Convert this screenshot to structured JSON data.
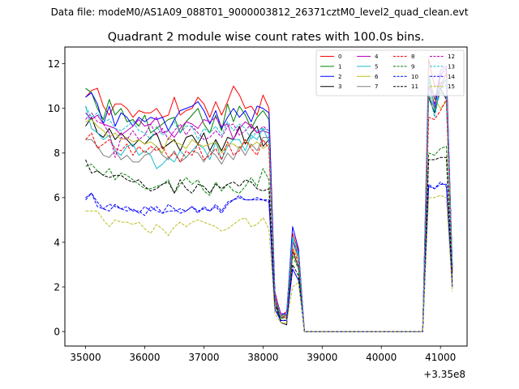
{
  "header": {
    "suptitle": "Data file: modeM0/AS1A09_088T01_9000003812_26371cztM0_level2_quad_clean.evt"
  },
  "chart_data": {
    "type": "line",
    "title": "Quadrant 2 module wise count rates with 100.0s bins.",
    "xlabel": "",
    "ylabel": "",
    "x_offset_label": "+3.35e8",
    "xlim": [
      34650,
      41450
    ],
    "ylim": [
      -0.65,
      12.75
    ],
    "xticks": [
      35000,
      36000,
      37000,
      38000,
      39000,
      40000,
      41000
    ],
    "xtick_labels": [
      "35000",
      "36000",
      "37000",
      "38000",
      "39000",
      "40000",
      "41000"
    ],
    "yticks": [
      0,
      2,
      4,
      6,
      8,
      10,
      12
    ],
    "ytick_labels": [
      "0",
      "2",
      "4",
      "6",
      "8",
      "10",
      "12"
    ],
    "legend_location": "top-right",
    "x": [
      35000,
      35100,
      35200,
      35300,
      35400,
      35500,
      35600,
      35700,
      35800,
      35900,
      36000,
      36100,
      36200,
      36300,
      36400,
      36500,
      36600,
      36700,
      36800,
      36900,
      37000,
      37100,
      37200,
      37300,
      37400,
      37500,
      37600,
      37700,
      37800,
      37900,
      38000,
      38100,
      38200,
      38300,
      38400,
      38500,
      38600,
      38700,
      38800,
      38900,
      39000,
      39100,
      39200,
      39300,
      39400,
      39500,
      39600,
      39700,
      39800,
      39900,
      40000,
      40100,
      40200,
      40300,
      40400,
      40500,
      40600,
      40700,
      40800,
      40900,
      41000,
      41100,
      41200
    ],
    "series": [
      {
        "name": "0",
        "color": "#ff0000",
        "dash": "solid",
        "values": [
          10.5,
          10.8,
          10.9,
          10.1,
          9.7,
          10.2,
          10.2,
          10.0,
          9.6,
          9.9,
          9.8,
          9.8,
          10.0,
          9.6,
          9.7,
          10.5,
          9.7,
          9.9,
          10.0,
          10.5,
          10.2,
          9.6,
          10.3,
          9.7,
          10.3,
          11.0,
          10.6,
          10.0,
          10.1,
          9.7,
          10.6,
          10.0,
          1.8,
          0.7,
          0.9,
          4.4,
          3.6,
          0,
          0,
          0,
          0,
          0,
          0,
          0,
          0,
          0,
          0,
          0,
          0,
          0,
          0,
          0,
          0,
          0,
          0,
          0,
          0,
          0,
          12.2,
          11.0,
          11.0,
          11.6,
          2.9
        ]
      },
      {
        "name": "1",
        "color": "#008000",
        "dash": "solid",
        "values": [
          10.9,
          10.7,
          10.0,
          9.5,
          10.4,
          9.7,
          10.0,
          9.4,
          9.5,
          9.2,
          9.7,
          8.9,
          9.1,
          9.3,
          9.5,
          9.6,
          8.9,
          9.4,
          9.7,
          10.0,
          9.3,
          8.9,
          9.7,
          9.0,
          10.2,
          9.4,
          10.1,
          9.7,
          9.1,
          9.6,
          9.9,
          9.5,
          1.6,
          0.6,
          0.8,
          4.2,
          3.4,
          0,
          0,
          0,
          0,
          0,
          0,
          0,
          0,
          0,
          0,
          0,
          0,
          0,
          0,
          0,
          0,
          0,
          0,
          0,
          0,
          0,
          11.5,
          10.4,
          10.9,
          11.3,
          2.9
        ]
      },
      {
        "name": "2",
        "color": "#0000ff",
        "dash": "solid",
        "values": [
          10.5,
          10.7,
          10.2,
          9.3,
          10.1,
          9.2,
          9.8,
          9.6,
          9.2,
          9.6,
          9.4,
          9.6,
          9.5,
          9.6,
          9.0,
          9.5,
          9.9,
          10.0,
          10.1,
          10.3,
          9.9,
          9.3,
          9.9,
          9.1,
          9.6,
          10.0,
          9.6,
          9.9,
          9.4,
          10.1,
          10.0,
          9.8,
          1.7,
          0.8,
          0.8,
          4.7,
          3.7,
          0,
          0,
          0,
          0,
          0,
          0,
          0,
          0,
          0,
          0,
          0,
          0,
          0,
          0,
          0,
          0,
          0,
          0,
          0,
          0,
          0,
          11.3,
          10.0,
          11.5,
          11.8,
          2.8
        ]
      },
      {
        "name": "3",
        "color": "#000000",
        "dash": "solid",
        "values": [
          9.2,
          9.6,
          8.9,
          8.7,
          9.1,
          8.6,
          8.9,
          8.6,
          8.3,
          8.6,
          8.4,
          8.7,
          8.9,
          8.2,
          8.4,
          8.6,
          8.1,
          8.7,
          8.8,
          8.4,
          8.9,
          8.1,
          8.6,
          8.1,
          8.7,
          8.6,
          9.2,
          8.4,
          8.9,
          9.2,
          8.3,
          8.6,
          1.5,
          0.4,
          0.3,
          3.6,
          2.9,
          0,
          0,
          0,
          0,
          0,
          0,
          0,
          0,
          0,
          0,
          0,
          0,
          0,
          0,
          0,
          0,
          0,
          0,
          0,
          0,
          0,
          10.5,
          9.8,
          10.9,
          10.4,
          2.7
        ]
      },
      {
        "name": "4",
        "color": "#bf00bf",
        "dash": "solid",
        "values": [
          9.8,
          9.5,
          9.7,
          9.3,
          9.2,
          9.1,
          8.8,
          9.0,
          9.2,
          9.5,
          9.2,
          9.3,
          9.6,
          8.9,
          9.0,
          8.7,
          9.1,
          9.4,
          9.3,
          9.1,
          9.5,
          9.4,
          9.6,
          9.2,
          9.3,
          8.6,
          9.1,
          9.4,
          9.2,
          8.9,
          9.0,
          8.9,
          1.7,
          0.8,
          0.7,
          4.0,
          3.5,
          0,
          0,
          0,
          0,
          0,
          0,
          0,
          0,
          0,
          0,
          0,
          0,
          0,
          0,
          0,
          0,
          0,
          0,
          0,
          0,
          0,
          11.0,
          10.2,
          11.7,
          11.9,
          2.9
        ]
      },
      {
        "name": "5",
        "color": "#17becf",
        "dash": "solid",
        "values": [
          10.1,
          9.1,
          8.9,
          8.6,
          8.8,
          8.1,
          7.9,
          8.3,
          8.4,
          7.9,
          8.1,
          7.9,
          7.3,
          7.5,
          7.8,
          7.6,
          8.1,
          7.8,
          8.1,
          8.4,
          8.2,
          7.7,
          8.5,
          7.7,
          8.3,
          8.6,
          8.6,
          8.1,
          8.8,
          8.6,
          9.1,
          8.5,
          1.6,
          0.7,
          0.8,
          4.2,
          3.5,
          0,
          0,
          0,
          0,
          0,
          0,
          0,
          0,
          0,
          0,
          0,
          0,
          0,
          0,
          0,
          0,
          0,
          0,
          0,
          0,
          0,
          11.4,
          9.9,
          11.1,
          11.3,
          2.9
        ]
      },
      {
        "name": "6",
        "color": "#bcbd22",
        "dash": "solid",
        "values": [
          9.4,
          9.5,
          9.2,
          9.0,
          8.7,
          8.9,
          8.6,
          8.7,
          8.5,
          8.6,
          8.4,
          8.5,
          8.3,
          8.0,
          8.7,
          8.5,
          8.4,
          8.2,
          8.6,
          8.4,
          8.3,
          8.4,
          8.5,
          8.0,
          8.4,
          8.4,
          8.2,
          8.6,
          8.3,
          8.5,
          8.2,
          8.4,
          1.5,
          0.7,
          0.7,
          3.8,
          3.2,
          0,
          0,
          0,
          0,
          0,
          0,
          0,
          0,
          0,
          0,
          0,
          0,
          0,
          0,
          0,
          0,
          0,
          0,
          0,
          0,
          0,
          10.5,
          10.4,
          10.0,
          10.3,
          2.8
        ]
      },
      {
        "name": "7",
        "color": "#7f7f7f",
        "dash": "solid",
        "values": [
          8.6,
          8.6,
          8.3,
          7.9,
          7.8,
          8.1,
          7.7,
          7.9,
          7.6,
          7.6,
          7.9,
          8.0,
          8.3,
          7.9,
          7.7,
          8.1,
          7.6,
          7.8,
          8.1,
          8.0,
          7.6,
          8.1,
          7.9,
          7.5,
          8.0,
          7.7,
          8.3,
          7.9,
          8.4,
          8.1,
          8.7,
          8.7,
          1.6,
          0.6,
          0.7,
          4.0,
          3.3,
          0,
          0,
          0,
          0,
          0,
          0,
          0,
          0,
          0,
          0,
          0,
          0,
          0,
          0,
          0,
          0,
          0,
          0,
          0,
          0,
          0,
          10.6,
          10.0,
          10.7,
          10.5,
          2.8
        ]
      },
      {
        "name": "8",
        "color": "#ff0000",
        "dash": "dashed",
        "values": [
          8.6,
          8.9,
          8.2,
          8.4,
          8.6,
          8.2,
          8.1,
          8.4,
          7.9,
          8.3,
          8.0,
          8.3,
          8.1,
          8.3,
          7.8,
          8.0,
          7.6,
          8.1,
          7.9,
          8.4,
          7.7,
          7.9,
          8.2,
          7.7,
          8.5,
          7.9,
          8.1,
          8.6,
          8.2,
          7.9,
          8.6,
          8.2,
          1.5,
          0.7,
          0.6,
          3.7,
          3.1,
          0,
          0,
          0,
          0,
          0,
          0,
          0,
          0,
          0,
          0,
          0,
          0,
          0,
          0,
          0,
          0,
          0,
          0,
          0,
          0,
          0,
          9.6,
          9.5,
          9.9,
          10.4,
          2.6
        ]
      },
      {
        "name": "9",
        "color": "#008000",
        "dash": "dashed",
        "values": [
          7.4,
          7.5,
          7.2,
          7.0,
          7.3,
          6.8,
          7.1,
          7.0,
          6.8,
          6.6,
          6.4,
          6.4,
          6.5,
          6.6,
          6.8,
          6.2,
          6.6,
          6.9,
          6.6,
          6.8,
          6.3,
          6.1,
          6.7,
          6.3,
          6.6,
          6.3,
          6.2,
          6.5,
          6.9,
          6.5,
          7.3,
          6.8,
          1.2,
          0.6,
          0.6,
          3.4,
          2.8,
          0,
          0,
          0,
          0,
          0,
          0,
          0,
          0,
          0,
          0,
          0,
          0,
          0,
          0,
          0,
          0,
          0,
          0,
          0,
          0,
          0,
          8.0,
          7.9,
          8.2,
          8.3,
          2.2
        ]
      },
      {
        "name": "10",
        "color": "#0000ff",
        "dash": "dashed",
        "values": [
          5.9,
          6.2,
          5.6,
          5.5,
          5.4,
          5.7,
          5.5,
          5.6,
          5.4,
          5.4,
          5.2,
          5.6,
          5.4,
          5.3,
          5.7,
          5.5,
          5.3,
          5.4,
          5.6,
          5.4,
          5.5,
          5.4,
          5.6,
          5.3,
          5.7,
          5.9,
          6.1,
          5.9,
          5.9,
          6.0,
          5.9,
          5.9,
          1.0,
          0.5,
          0.5,
          2.8,
          2.3,
          0,
          0,
          0,
          0,
          0,
          0,
          0,
          0,
          0,
          0,
          0,
          0,
          0,
          0,
          0,
          0,
          0,
          0,
          0,
          0,
          0,
          6.6,
          6.4,
          6.7,
          6.5,
          2.0
        ]
      },
      {
        "name": "11",
        "color": "#000000",
        "dash": "dashed",
        "values": [
          7.7,
          7.1,
          7.2,
          7.0,
          6.9,
          7.0,
          7.0,
          6.8,
          6.7,
          6.8,
          6.5,
          6.3,
          6.4,
          6.6,
          6.7,
          6.2,
          6.8,
          6.4,
          6.2,
          6.6,
          6.5,
          6.2,
          6.6,
          6.4,
          6.6,
          6.7,
          6.5,
          6.8,
          6.7,
          6.4,
          6.3,
          6.4,
          1.2,
          0.5,
          0.5,
          3.0,
          2.5,
          0,
          0,
          0,
          0,
          0,
          0,
          0,
          0,
          0,
          0,
          0,
          0,
          0,
          0,
          0,
          0,
          0,
          0,
          0,
          0,
          0,
          7.7,
          7.7,
          7.8,
          7.8,
          2.1
        ]
      },
      {
        "name": "12",
        "color": "#bf00bf",
        "dash": "dashed",
        "values": [
          9.5,
          9.8,
          9.4,
          9.3,
          8.9,
          7.8,
          8.7,
          8.6,
          9.0,
          8.6,
          8.8,
          9.3,
          8.8,
          9.1,
          8.6,
          9.0,
          9.3,
          8.8,
          9.2,
          8.9,
          8.6,
          8.7,
          9.0,
          8.7,
          9.2,
          9.3,
          8.8,
          9.0,
          9.3,
          8.9,
          9.2,
          9.0,
          1.7,
          0.7,
          0.8,
          4.0,
          3.4,
          0,
          0,
          0,
          0,
          0,
          0,
          0,
          0,
          0,
          0,
          0,
          0,
          0,
          0,
          0,
          0,
          0,
          0,
          0,
          0,
          0,
          11.0,
          10.5,
          11.2,
          11.0,
          2.9
        ]
      },
      {
        "name": "13",
        "color": "#17becf",
        "dash": "dashed",
        "values": [
          10.1,
          9.6,
          9.8,
          9.4,
          9.5,
          9.1,
          9.0,
          9.2,
          9.4,
          9.0,
          8.9,
          8.6,
          9.2,
          8.8,
          9.0,
          9.4,
          8.9,
          9.2,
          9.2,
          8.6,
          9.1,
          8.9,
          9.2,
          8.8,
          9.4,
          9.0,
          9.3,
          9.1,
          8.6,
          9.0,
          9.1,
          9.0,
          1.6,
          0.7,
          0.8,
          4.1,
          3.4,
          0,
          0,
          0,
          0,
          0,
          0,
          0,
          0,
          0,
          0,
          0,
          0,
          0,
          0,
          0,
          0,
          0,
          0,
          0,
          0,
          0,
          10.8,
          9.6,
          10.9,
          11.0,
          2.9
        ]
      },
      {
        "name": "14",
        "color": "#0000ff",
        "dash": "dashed",
        "values": [
          6.0,
          6.2,
          5.8,
          5.5,
          5.7,
          5.6,
          5.5,
          5.4,
          5.5,
          5.3,
          5.6,
          5.4,
          5.6,
          5.3,
          5.4,
          5.4,
          5.5,
          5.4,
          5.6,
          5.3,
          5.6,
          5.4,
          5.7,
          5.4,
          5.8,
          5.9,
          6.0,
          5.9,
          5.9,
          5.9,
          5.9,
          5.8,
          1.0,
          0.5,
          0.5,
          2.8,
          2.3,
          0,
          0,
          0,
          0,
          0,
          0,
          0,
          0,
          0,
          0,
          0,
          0,
          0,
          0,
          0,
          0,
          0,
          0,
          0,
          0,
          0,
          6.5,
          6.4,
          6.6,
          6.6,
          2.0
        ]
      },
      {
        "name": "15",
        "color": "#bcbd22",
        "dash": "dashed",
        "values": [
          5.4,
          5.4,
          5.4,
          5.0,
          4.7,
          5.0,
          4.9,
          4.9,
          4.8,
          4.9,
          4.6,
          4.4,
          4.8,
          4.6,
          4.3,
          4.7,
          4.9,
          4.7,
          4.9,
          5.0,
          4.9,
          4.8,
          4.7,
          4.5,
          4.6,
          4.8,
          5.0,
          5.1,
          4.7,
          4.8,
          5.1,
          4.6,
          0.8,
          0.4,
          0.4,
          2.0,
          2.2,
          0,
          0,
          0,
          0,
          0,
          0,
          0,
          0,
          0,
          0,
          0,
          0,
          0,
          0,
          0,
          0,
          0,
          0,
          0,
          0,
          0,
          6.0,
          6.0,
          6.1,
          6.0,
          1.8
        ]
      }
    ]
  }
}
